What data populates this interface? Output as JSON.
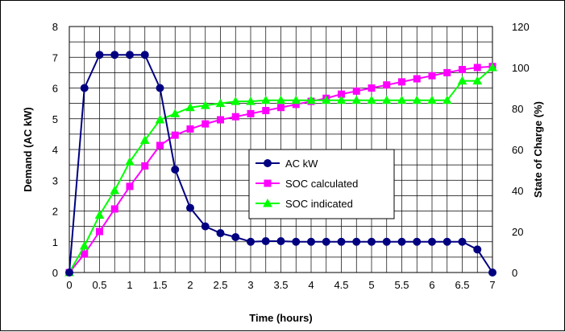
{
  "chart_data": {
    "type": "line",
    "title": "",
    "xlabel": "Time (hours)",
    "ylabel_left": "Demand (AC kW)",
    "ylabel_right": "State of Charge (%)",
    "xlim": [
      0,
      7
    ],
    "ylim_left": [
      0,
      8
    ],
    "ylim_right": [
      0,
      120
    ],
    "x_ticks": [
      "0",
      "0.5",
      "1",
      "1.5",
      "2",
      "2.5",
      "3",
      "3.5",
      "4",
      "4.5",
      "5",
      "5.5",
      "6",
      "6.5",
      "7"
    ],
    "y_left_ticks": [
      "0",
      "1",
      "2",
      "3",
      "4",
      "5",
      "6",
      "7",
      "8"
    ],
    "y_right_ticks": [
      "0",
      "20",
      "40",
      "60",
      "80",
      "100",
      "120"
    ],
    "grid": true,
    "legend_position": "center",
    "x": [
      0,
      0.25,
      0.5,
      0.75,
      1,
      1.25,
      1.5,
      1.75,
      2,
      2.25,
      2.5,
      2.75,
      3,
      3.25,
      3.5,
      3.75,
      4,
      4.25,
      4.5,
      4.75,
      5,
      5.25,
      5.5,
      5.75,
      6,
      6.25,
      6.5,
      6.75,
      7
    ],
    "series": [
      {
        "name": "AC kW",
        "axis": "left",
        "marker": "circle",
        "color": "#000080",
        "values": [
          0,
          6.0,
          7.08,
          7.08,
          7.08,
          7.08,
          6.0,
          3.35,
          2.1,
          1.5,
          1.28,
          1.15,
          1.0,
          1.02,
          1.02,
          1.0,
          1.0,
          1.0,
          1.0,
          1.0,
          1.0,
          1.0,
          1.0,
          1.0,
          1.0,
          1.0,
          1.0,
          0.75,
          0.0
        ]
      },
      {
        "name": "SOC calculated",
        "axis": "right",
        "marker": "square",
        "color": "#ff00ff",
        "values": [
          0,
          9,
          20,
          31,
          42,
          52,
          62,
          67,
          70,
          72.5,
          74.5,
          76,
          77.5,
          79,
          80.5,
          82,
          83.5,
          85,
          87,
          88.5,
          90,
          91.5,
          93,
          94.5,
          96,
          97.5,
          99,
          100,
          100.5
        ]
      },
      {
        "name": "SOC indicated",
        "axis": "right",
        "marker": "triangle",
        "color": "#00ff00",
        "values": [
          0,
          13,
          28,
          40,
          54,
          64.5,
          74.5,
          77.5,
          80.5,
          81.5,
          82.5,
          83.5,
          83.5,
          84,
          84,
          84,
          84,
          84,
          84,
          84,
          84,
          84,
          84,
          84,
          84,
          84,
          93.5,
          93.5,
          100
        ]
      }
    ]
  }
}
